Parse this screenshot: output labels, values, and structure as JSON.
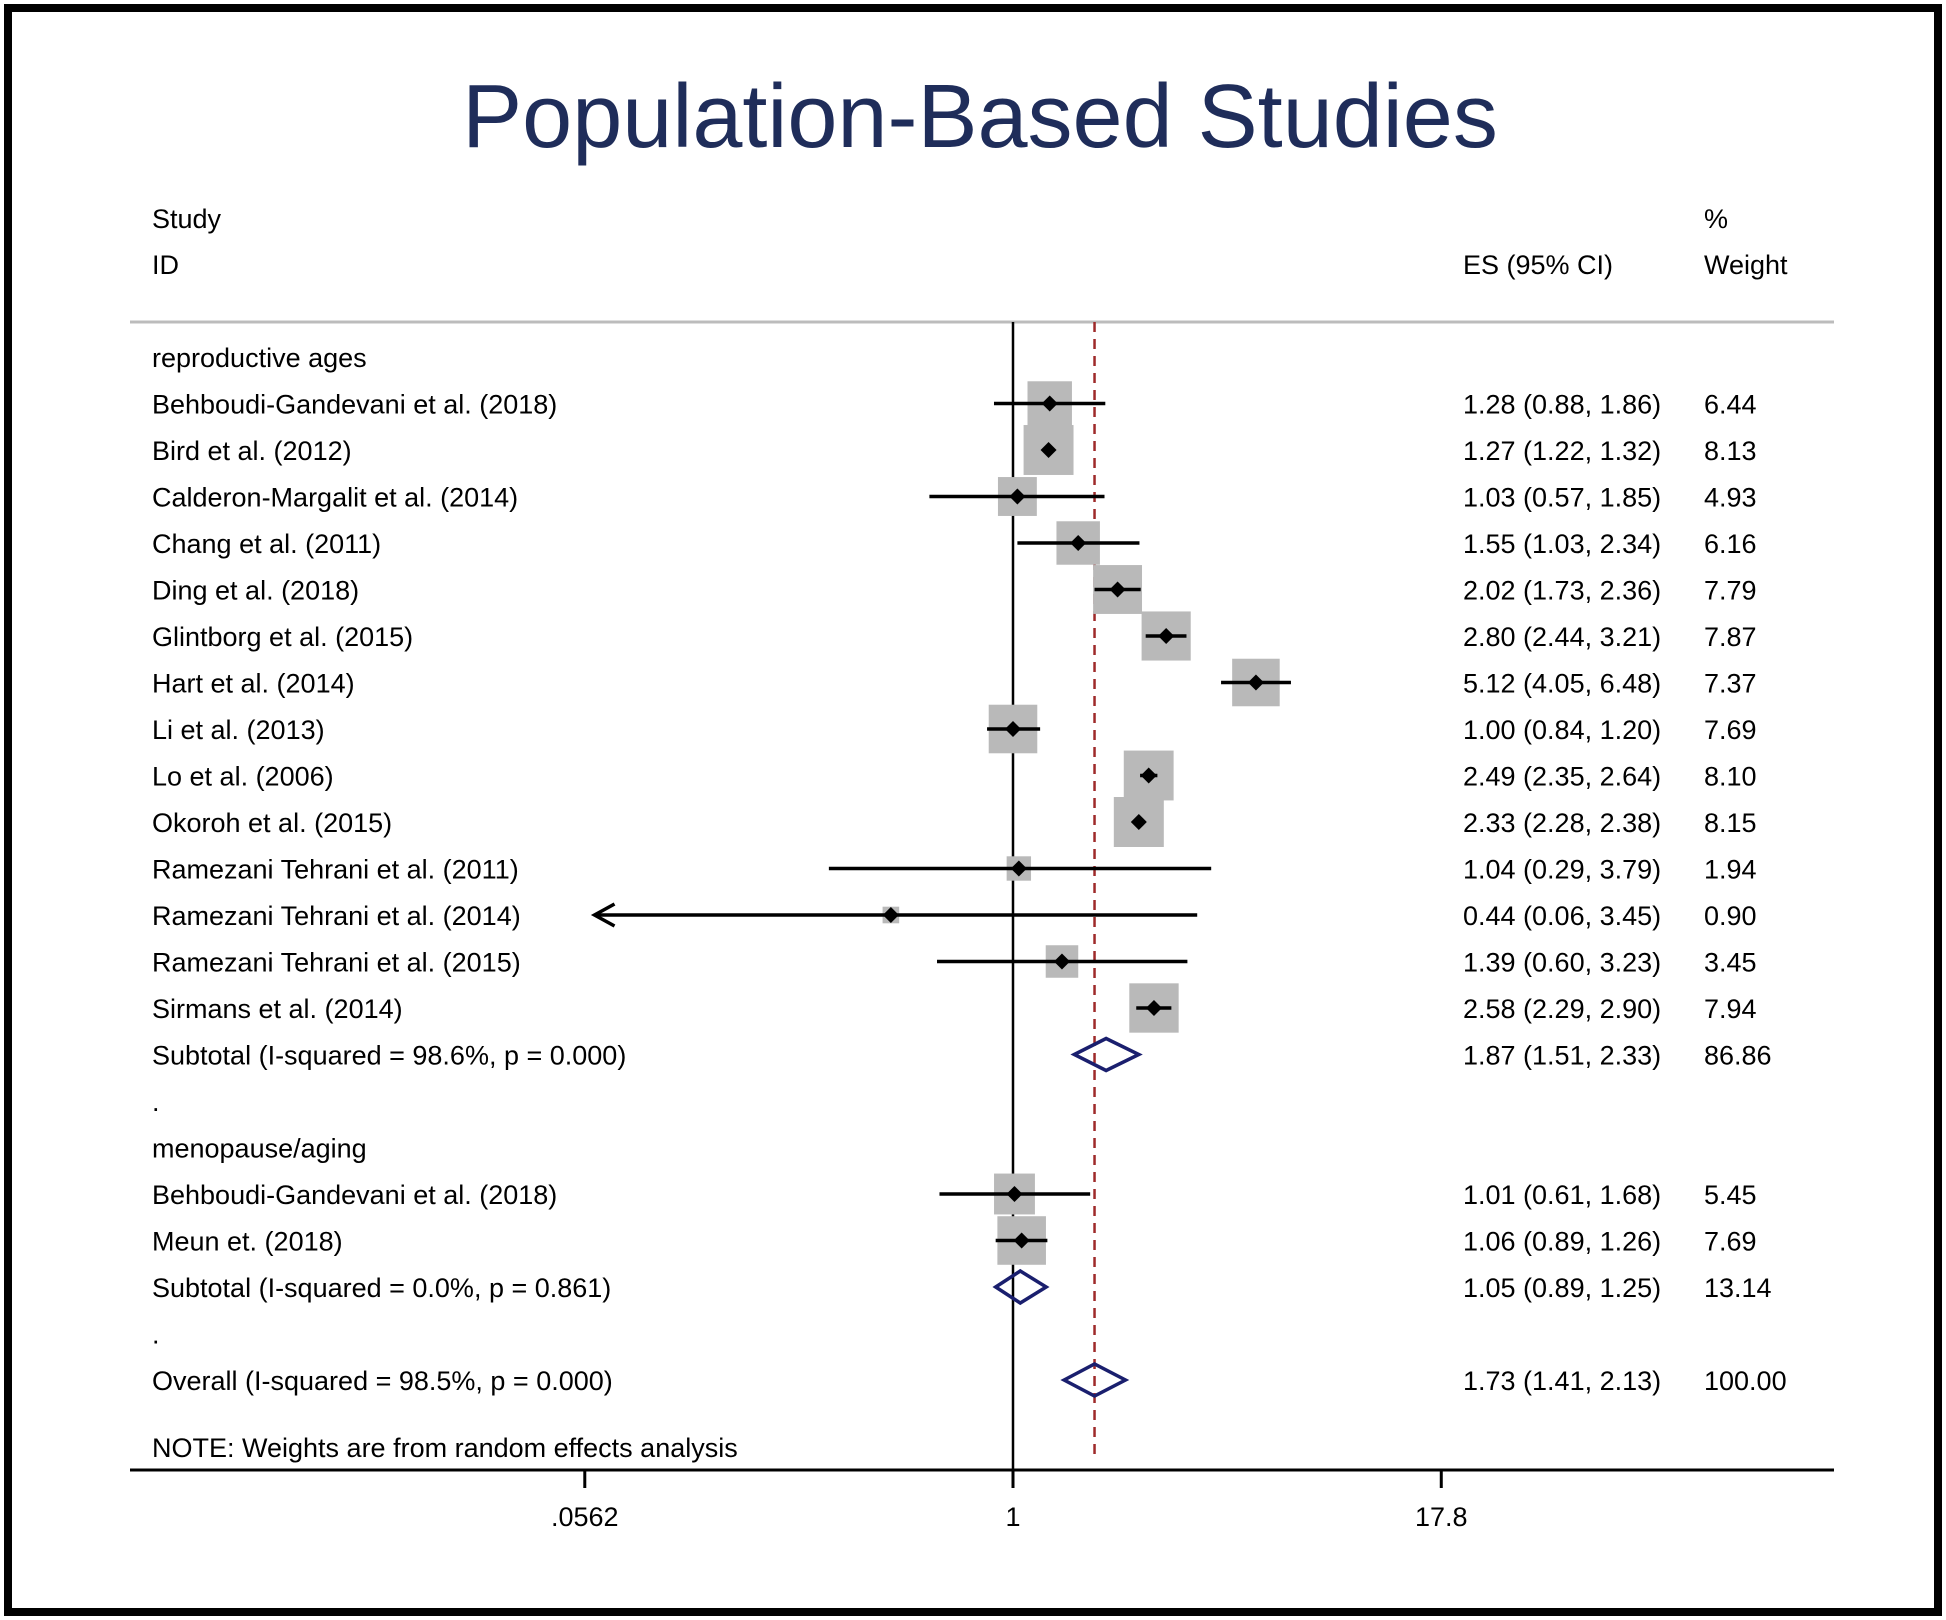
{
  "chart_data": {
    "type": "forest",
    "title": "Population-Based Studies",
    "headers": {
      "study_line1": "Study",
      "study_line2": "ID",
      "es": "ES (95% CI)",
      "weight_line1": "%",
      "weight_line2": "Weight"
    },
    "x_scale": "log",
    "x_ticks": [
      {
        "value": 0.0562,
        "label": ".0562"
      },
      {
        "value": 1,
        "label": "1"
      },
      {
        "value": 17.8,
        "label": "17.8"
      }
    ],
    "null_line": 1,
    "overall_effect_line": 1.73,
    "rows": [
      {
        "kind": "group",
        "label": "reproductive ages"
      },
      {
        "kind": "study",
        "label": "Behboudi-Gandevani et al. (2018)",
        "es": 1.28,
        "lo": 0.88,
        "hi": 1.86,
        "es_text": "1.28 (0.88, 1.86)",
        "weight": 6.44,
        "weight_text": "6.44"
      },
      {
        "kind": "study",
        "label": "Bird et al. (2012)",
        "es": 1.27,
        "lo": 1.22,
        "hi": 1.32,
        "es_text": "1.27 (1.22, 1.32)",
        "weight": 8.13,
        "weight_text": "8.13"
      },
      {
        "kind": "study",
        "label": "Calderon-Margalit et al. (2014)",
        "es": 1.03,
        "lo": 0.57,
        "hi": 1.85,
        "es_text": "1.03 (0.57, 1.85)",
        "weight": 4.93,
        "weight_text": "4.93"
      },
      {
        "kind": "study",
        "label": "Chang et al. (2011)",
        "es": 1.55,
        "lo": 1.03,
        "hi": 2.34,
        "es_text": "1.55 (1.03, 2.34)",
        "weight": 6.16,
        "weight_text": "6.16"
      },
      {
        "kind": "study",
        "label": "Ding et al. (2018)",
        "es": 2.02,
        "lo": 1.73,
        "hi": 2.36,
        "es_text": "2.02 (1.73, 2.36)",
        "weight": 7.79,
        "weight_text": "7.79"
      },
      {
        "kind": "study",
        "label": "Glintborg et al. (2015)",
        "es": 2.8,
        "lo": 2.44,
        "hi": 3.21,
        "es_text": "2.80 (2.44, 3.21)",
        "weight": 7.87,
        "weight_text": "7.87"
      },
      {
        "kind": "study",
        "label": "Hart et al. (2014)",
        "es": 5.12,
        "lo": 4.05,
        "hi": 6.48,
        "es_text": "5.12 (4.05, 6.48)",
        "weight": 7.37,
        "weight_text": "7.37"
      },
      {
        "kind": "study",
        "label": "Li et al. (2013)",
        "es": 1.0,
        "lo": 0.84,
        "hi": 1.2,
        "es_text": "1.00 (0.84, 1.20)",
        "weight": 7.69,
        "weight_text": "7.69"
      },
      {
        "kind": "study",
        "label": "Lo et al. (2006)",
        "es": 2.49,
        "lo": 2.35,
        "hi": 2.64,
        "es_text": "2.49 (2.35, 2.64)",
        "weight": 8.1,
        "weight_text": "8.10"
      },
      {
        "kind": "study",
        "label": "Okoroh et al. (2015)",
        "es": 2.33,
        "lo": 2.28,
        "hi": 2.38,
        "es_text": "2.33 (2.28, 2.38)",
        "weight": 8.15,
        "weight_text": "8.15"
      },
      {
        "kind": "study",
        "label": "Ramezani Tehrani et al. (2011)",
        "es": 1.04,
        "lo": 0.29,
        "hi": 3.79,
        "es_text": "1.04 (0.29, 3.79)",
        "weight": 1.94,
        "weight_text": "1.94"
      },
      {
        "kind": "study",
        "label": "Ramezani Tehrani et al. (2014)",
        "es": 0.44,
        "lo": 0.06,
        "hi": 3.45,
        "es_text": "0.44 (0.06, 3.45)",
        "weight": 0.9,
        "weight_text": "0.90",
        "arrow_left": true
      },
      {
        "kind": "study",
        "label": "Ramezani Tehrani et al. (2015)",
        "es": 1.39,
        "lo": 0.6,
        "hi": 3.23,
        "es_text": "1.39 (0.60, 3.23)",
        "weight": 3.45,
        "weight_text": "3.45"
      },
      {
        "kind": "study",
        "label": "Sirmans et al. (2014)",
        "es": 2.58,
        "lo": 2.29,
        "hi": 2.9,
        "es_text": "2.58 (2.29, 2.90)",
        "weight": 7.94,
        "weight_text": "7.94"
      },
      {
        "kind": "subtotal",
        "label": "Subtotal  (I-squared = 98.6%, p = 0.000)",
        "es": 1.87,
        "lo": 1.51,
        "hi": 2.33,
        "es_text": "1.87 (1.51, 2.33)",
        "weight": 86.86,
        "weight_text": "86.86"
      },
      {
        "kind": "spacer",
        "label": "."
      },
      {
        "kind": "group",
        "label": "menopause/aging"
      },
      {
        "kind": "study",
        "label": "Behboudi-Gandevani et al. (2018)",
        "es": 1.01,
        "lo": 0.61,
        "hi": 1.68,
        "es_text": "1.01 (0.61, 1.68)",
        "weight": 5.45,
        "weight_text": "5.45"
      },
      {
        "kind": "study",
        "label": "Meun et. (2018)",
        "es": 1.06,
        "lo": 0.89,
        "hi": 1.26,
        "es_text": "1.06 (0.89, 1.26)",
        "weight": 7.69,
        "weight_text": "7.69"
      },
      {
        "kind": "subtotal",
        "label": "Subtotal  (I-squared = 0.0%, p = 0.861)",
        "es": 1.05,
        "lo": 0.89,
        "hi": 1.25,
        "es_text": "1.05 (0.89, 1.25)",
        "weight": 13.14,
        "weight_text": "13.14"
      },
      {
        "kind": "spacer",
        "label": "."
      },
      {
        "kind": "overall",
        "label": "Overall  (I-squared = 98.5%, p = 0.000)",
        "es": 1.73,
        "lo": 1.41,
        "hi": 2.13,
        "es_text": "1.73 (1.41, 2.13)",
        "weight": 100.0,
        "weight_text": "100.00"
      }
    ],
    "note": "NOTE: Weights are from random effects analysis",
    "colors": {
      "title": "#1f2d5a",
      "box": "#b9b9b9",
      "diamond": "#1a1f6e",
      "effect_line": "#9e2a2a",
      "frame": "#000000",
      "header_rule": "#bcbcbc"
    }
  }
}
